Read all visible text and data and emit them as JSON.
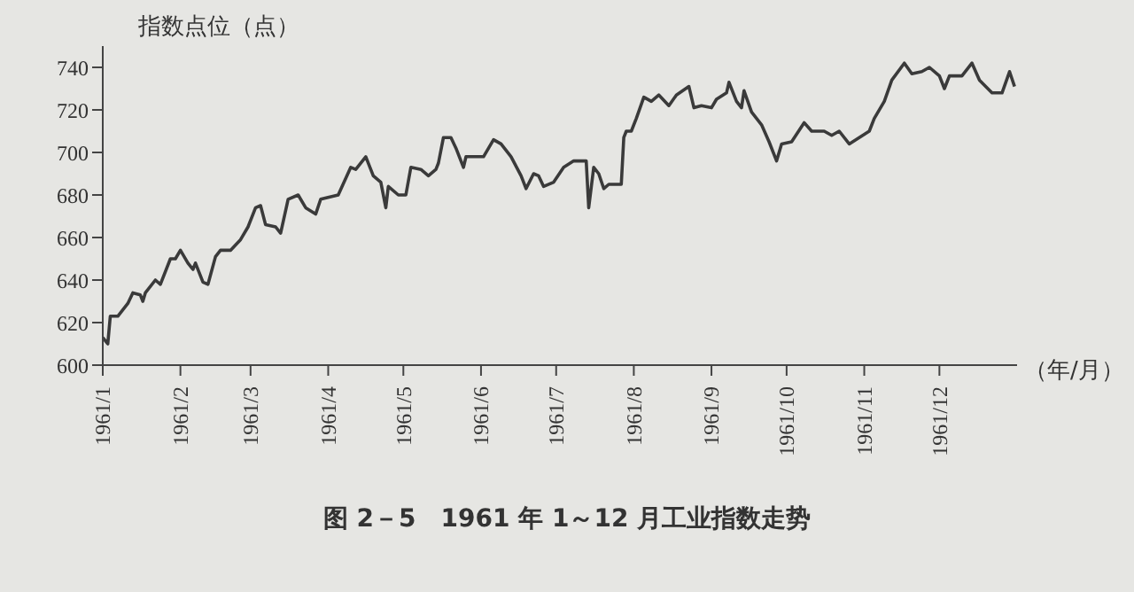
{
  "chart_data": {
    "type": "line",
    "title": "图 2－5　1961 年 1～12 月工业指数走势",
    "ylabel": "指数点位（点）",
    "xlabel": "（年/月）",
    "x": [
      "1961-01-01",
      "1961-01-03",
      "1961-01-04",
      "1961-01-07",
      "1961-01-11",
      "1961-01-13",
      "1961-01-16",
      "1961-01-17",
      "1961-01-18",
      "1961-01-22",
      "1961-01-24",
      "1961-01-28",
      "1961-01-30",
      "1961-02-01",
      "1961-02-04",
      "1961-02-06",
      "1961-02-07",
      "1961-02-10",
      "1961-02-12",
      "1961-02-15",
      "1961-02-17",
      "1961-02-21",
      "1961-02-25",
      "1961-02-28",
      "1961-03-03",
      "1961-03-05",
      "1961-03-07",
      "1961-03-11",
      "1961-03-13",
      "1961-03-16",
      "1961-03-20",
      "1961-03-23",
      "1961-03-27",
      "1961-03-29",
      "1961-04-05",
      "1961-04-10",
      "1961-04-12",
      "1961-04-16",
      "1961-04-19",
      "1961-04-22",
      "1961-04-24",
      "1961-04-25",
      "1961-04-29",
      "1961-05-02",
      "1961-05-04",
      "1961-05-08",
      "1961-05-11",
      "1961-05-14",
      "1961-05-15",
      "1961-05-17",
      "1961-05-20",
      "1961-05-22",
      "1961-05-25",
      "1961-05-26",
      "1961-06-02",
      "1961-06-06",
      "1961-06-09",
      "1961-06-13",
      "1961-06-17",
      "1961-06-19",
      "1961-06-22",
      "1961-06-24",
      "1961-06-26",
      "1961-06-30",
      "1961-07-04",
      "1961-07-08",
      "1961-07-12",
      "1961-07-13",
      "1961-07-14",
      "1961-07-16",
      "1961-07-18",
      "1961-07-20",
      "1961-07-22",
      "1961-07-27",
      "1961-07-28",
      "1961-07-29",
      "1961-07-31",
      "1961-08-02",
      "1961-08-05",
      "1961-08-08",
      "1961-08-11",
      "1961-08-15",
      "1961-08-18",
      "1961-08-23",
      "1961-08-25",
      "1961-08-28",
      "1961-09-01",
      "1961-09-03",
      "1961-09-07",
      "1961-09-08",
      "1961-09-11",
      "1961-09-13",
      "1961-09-14",
      "1961-09-17",
      "1961-09-21",
      "1961-09-24",
      "1961-09-27",
      "1961-09-29",
      "1961-10-03",
      "1961-10-08",
      "1961-10-11",
      "1961-10-16",
      "1961-10-19",
      "1961-10-22",
      "1961-10-26",
      "1961-10-30",
      "1961-11-03",
      "1961-11-05",
      "1961-11-09",
      "1961-11-12",
      "1961-11-17",
      "1961-11-20",
      "1961-11-24",
      "1961-11-27",
      "1961-12-01",
      "1961-12-03",
      "1961-12-05",
      "1961-12-10",
      "1961-12-14",
      "1961-12-17",
      "1961-12-22",
      "1961-12-26",
      "1961-12-29",
      "1961-12-31"
    ],
    "series": [
      {
        "color": "#3a3a3a",
        "values": [
          613,
          610,
          623,
          623,
          629,
          634,
          633,
          630,
          634,
          640,
          638,
          650,
          650,
          654,
          648,
          645,
          648,
          639,
          638,
          651,
          654,
          654,
          659,
          665,
          674,
          675,
          666,
          665,
          662,
          678,
          680,
          674,
          671,
          678,
          680,
          693,
          692,
          698,
          689,
          686,
          674,
          684,
          680,
          680,
          693,
          692,
          689,
          692,
          695,
          707,
          707,
          702,
          693,
          698,
          698,
          706,
          704,
          698,
          689,
          683,
          690,
          689,
          684,
          686,
          693,
          696,
          696,
          696,
          674,
          693,
          690,
          683,
          685,
          685,
          707,
          710,
          710,
          716,
          726,
          724,
          727,
          722,
          727,
          731,
          721,
          722,
          721,
          725,
          728,
          733,
          724,
          721,
          729,
          719,
          713,
          705,
          696,
          704,
          705,
          714,
          710,
          710,
          708,
          710,
          704,
          707,
          710,
          716,
          724,
          734,
          742,
          737,
          738,
          740,
          736,
          730,
          736,
          736,
          742,
          734,
          728,
          728,
          738,
          731
        ]
      }
    ],
    "xlim": [
      "1961-01-01",
      "1962-01-01"
    ],
    "xticks": [
      {
        "value": "1961-01-01",
        "label": "1961/1"
      },
      {
        "value": "1961-02-01",
        "label": "1961/2"
      },
      {
        "value": "1961-03-01",
        "label": "1961/3"
      },
      {
        "value": "1961-04-01",
        "label": "1961/4"
      },
      {
        "value": "1961-05-01",
        "label": "1961/5"
      },
      {
        "value": "1961-06-01",
        "label": "1961/6"
      },
      {
        "value": "1961-07-01",
        "label": "1961/7"
      },
      {
        "value": "1961-08-01",
        "label": "1961/8"
      },
      {
        "value": "1961-09-01",
        "label": "1961/9"
      },
      {
        "value": "1961-10-01",
        "label": "1961/10"
      },
      {
        "value": "1961-11-01",
        "label": "1961/11"
      },
      {
        "value": "1961-12-01",
        "label": "1961/12"
      }
    ],
    "ylim": [
      600,
      750
    ],
    "yticks": [
      600,
      620,
      640,
      660,
      680,
      700,
      720,
      740
    ],
    "grid": false,
    "legend": false,
    "marker": "none",
    "line_style": "solid"
  }
}
